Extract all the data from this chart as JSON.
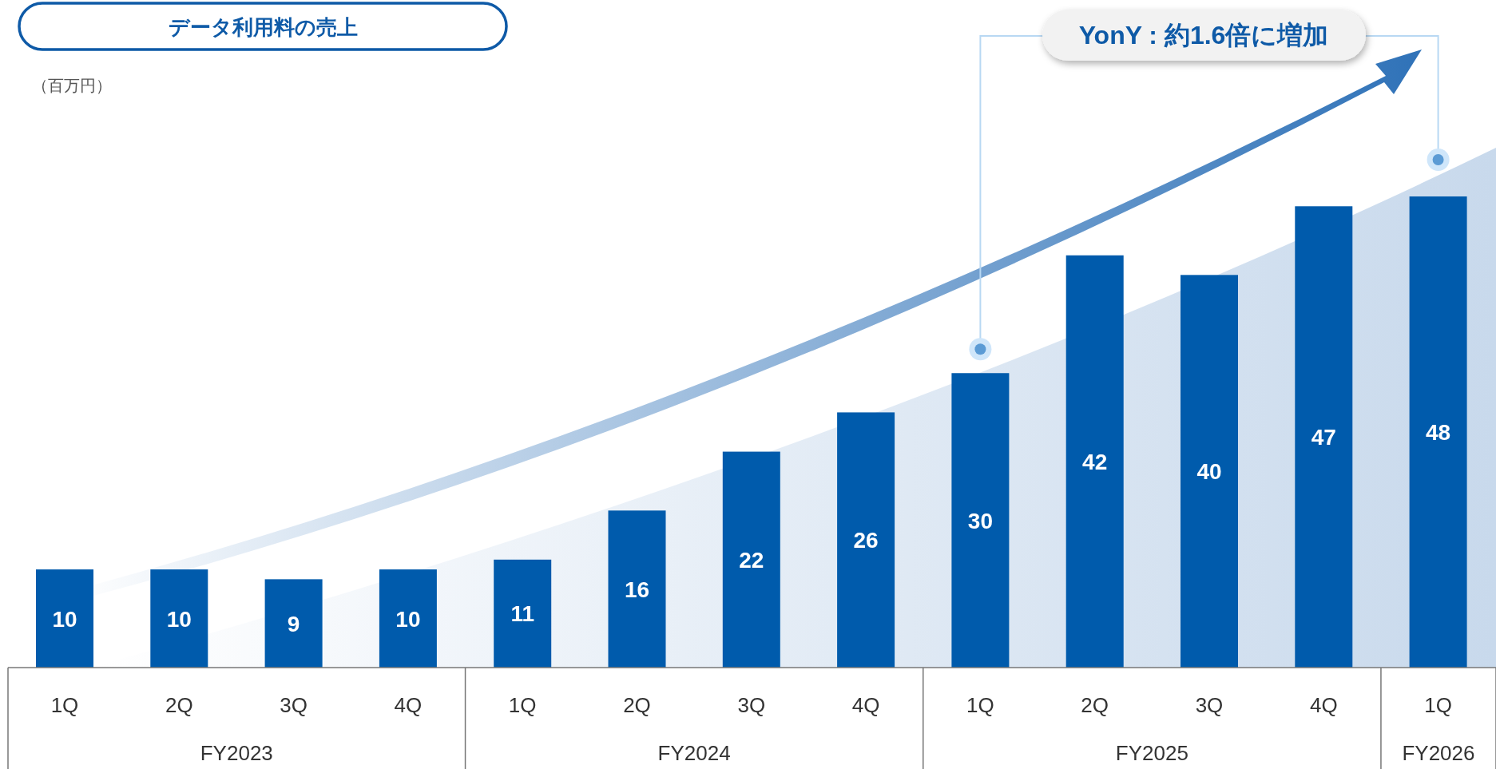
{
  "chart_data": {
    "type": "bar",
    "title": "データ利用料の売上",
    "categories": [
      "1Q",
      "2Q",
      "3Q",
      "4Q",
      "1Q",
      "2Q",
      "3Q",
      "4Q",
      "1Q",
      "2Q",
      "3Q",
      "4Q",
      "1Q"
    ],
    "values": [
      10,
      10,
      9,
      10,
      11,
      16,
      22,
      26,
      30,
      42,
      40,
      47,
      48
    ],
    "color": "#005bac",
    "data_labels": true,
    "annotations": [
      "（百万円）",
      "YonY : 約1.6倍に増加",
      "FY2023",
      "FY2024",
      "FY2025",
      "FY2026"
    ]
  }
}
